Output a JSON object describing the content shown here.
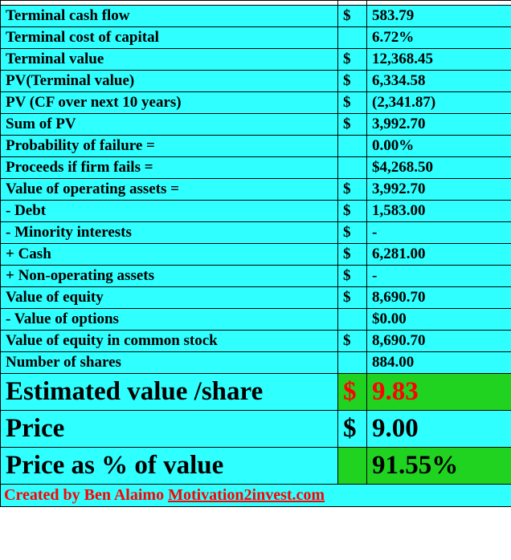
{
  "colors": {
    "cyan": "#2fffff",
    "green": "#21d321",
    "red": "#ff0000",
    "border": "#000000",
    "background": "#ffffff"
  },
  "font": {
    "family": "Times New Roman",
    "regular_size_pt": 14,
    "big_size_pt": 25
  },
  "rows": [
    {
      "label": "Terminal cash flow",
      "currency": "$",
      "value": "583.79"
    },
    {
      "label": "Terminal cost of capital",
      "currency": "",
      "value": "6.72%"
    },
    {
      "label": "Terminal value",
      "currency": "$",
      "value": "12,368.45"
    },
    {
      "label": "PV(Terminal value)",
      "currency": "$",
      "value": "6,334.58"
    },
    {
      "label": "PV (CF over next 10 years)",
      "currency": "$",
      "value": "(2,341.87)"
    },
    {
      "label": "Sum of PV",
      "currency": "$",
      "value": "3,992.70"
    },
    {
      "label": "Probability of failure =",
      "currency": "",
      "value": "0.00%"
    },
    {
      "label": "Proceeds if firm fails =",
      "currency": "",
      "value": "$4,268.50"
    },
    {
      "label": "Value of operating assets =",
      "currency": "$",
      "value": "3,992.70"
    },
    {
      "label": " - Debt",
      "currency": "$",
      "value": "1,583.00"
    },
    {
      "label": " - Minority interests",
      "currency": "$",
      "value": "-"
    },
    {
      "label": " +  Cash",
      "currency": "$",
      "value": "6,281.00"
    },
    {
      "label": " + Non-operating assets",
      "currency": "$",
      "value": "-"
    },
    {
      "label": "Value of equity",
      "currency": "$",
      "value": "8,690.70"
    },
    {
      "label": " - Value of options",
      "currency": "",
      "value": "$0.00"
    },
    {
      "label": "Value of equity in common stock",
      "currency": "$",
      "value": "8,690.70"
    },
    {
      "label": "Number of shares",
      "currency": "",
      "value": "884.00"
    }
  ],
  "big_rows": {
    "estimated": {
      "label": "Estimated value /share",
      "currency": "$",
      "value": "9.83"
    },
    "price": {
      "label": "Price",
      "currency": "$",
      "value": "9.00"
    },
    "pct": {
      "label": "Price as % of value",
      "currency": "",
      "value": "91.55%"
    }
  },
  "credit": {
    "prefix": "Created by Ben Alaimo ",
    "link": "Motivation2invest.com"
  }
}
